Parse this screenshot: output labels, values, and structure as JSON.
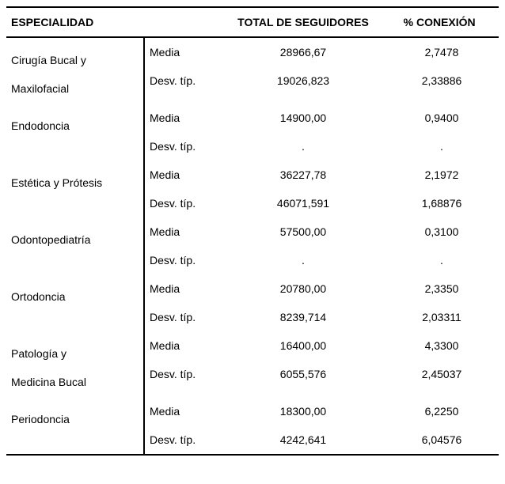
{
  "header": {
    "especialidad": "ESPECIALIDAD",
    "total_seguidores": "TOTAL DE SEGUIDORES",
    "conexion": "% CONEXIÓN"
  },
  "stat_labels": {
    "media": "Media",
    "desv": "Desv. típ."
  },
  "groups": [
    {
      "name_lines": [
        "Cirugía Bucal y",
        "Maxilofacial"
      ],
      "media": {
        "seg": "28966,67",
        "con": "2,7478"
      },
      "desv": {
        "seg": "19026,823",
        "con": "2,33886"
      }
    },
    {
      "name_lines": [
        "Endodoncia"
      ],
      "media": {
        "seg": "14900,00",
        "con": "0,9400"
      },
      "desv": {
        "seg": ".",
        "con": "."
      }
    },
    {
      "name_lines": [
        "Estética y Prótesis"
      ],
      "media": {
        "seg": "36227,78",
        "con": "2,1972"
      },
      "desv": {
        "seg": "46071,591",
        "con": "1,68876"
      }
    },
    {
      "name_lines": [
        "Odontopediatría"
      ],
      "media": {
        "seg": "57500,00",
        "con": "0,3100"
      },
      "desv": {
        "seg": ".",
        "con": "."
      }
    },
    {
      "name_lines": [
        "Ortodoncia"
      ],
      "media": {
        "seg": "20780,00",
        "con": "2,3350"
      },
      "desv": {
        "seg": "8239,714",
        "con": "2,03311"
      }
    },
    {
      "name_lines": [
        "Patología y",
        "Medicina Bucal"
      ],
      "media": {
        "seg": "16400,00",
        "con": "4,3300"
      },
      "desv": {
        "seg": "6055,576",
        "con": "2,45037"
      }
    },
    {
      "name_lines": [
        "Periodoncia"
      ],
      "media": {
        "seg": "18300,00",
        "con": "6,2250"
      },
      "desv": {
        "seg": "4242,641",
        "con": "6,04576"
      }
    }
  ]
}
